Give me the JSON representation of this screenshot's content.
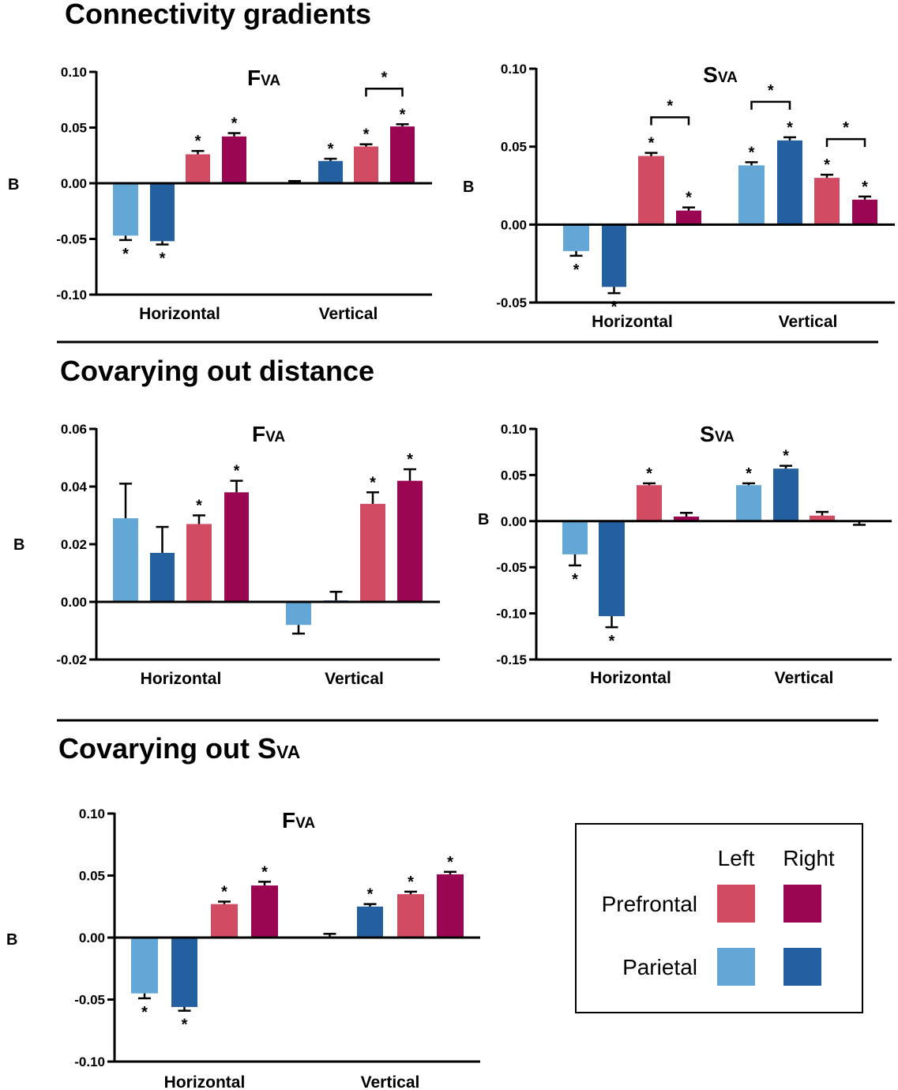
{
  "sections": [
    {
      "title": "Connectivity gradients",
      "sub": ""
    },
    {
      "title": "Covarying out distance",
      "sub": ""
    },
    {
      "title": "Covarying out S",
      "sub": "VA"
    }
  ],
  "colors": {
    "parietal_left": "#62a7d6",
    "parietal_right": "#245fa0",
    "prefrontal_left": "#d14b63",
    "prefrontal_right": "#9a0652"
  },
  "legend": {
    "col_left": "Left",
    "col_right": "Right",
    "row_prefrontal": "Prefrontal",
    "row_parietal": "Parietal"
  },
  "chart_data": [
    {
      "type": "bar",
      "title_main": "F",
      "title_sub": "VA",
      "ylabel": "B",
      "ylim": [
        -0.1,
        0.1
      ],
      "ticks": [
        "0.10",
        "0.05",
        "0.00",
        "-0.05",
        "-0.10"
      ],
      "tick_values": [
        0.1,
        0.05,
        0.0,
        -0.05,
        -0.1
      ],
      "categories": [
        "Horizontal",
        "Vertical"
      ],
      "series": [
        {
          "name": "Parietal Left",
          "color_key": "parietal_left",
          "values": [
            -0.047,
            0.0
          ],
          "errors": [
            0.004,
            0.002
          ],
          "sig": [
            true,
            false
          ]
        },
        {
          "name": "Parietal Right",
          "color_key": "parietal_right",
          "values": [
            -0.052,
            0.02
          ],
          "errors": [
            0.003,
            0.002
          ],
          "sig": [
            true,
            true
          ]
        },
        {
          "name": "Prefrontal Left",
          "color_key": "prefrontal_left",
          "values": [
            0.026,
            0.033
          ],
          "errors": [
            0.003,
            0.002
          ],
          "sig": [
            true,
            true
          ]
        },
        {
          "name": "Prefrontal Right",
          "color_key": "prefrontal_right",
          "values": [
            0.042,
            0.051
          ],
          "errors": [
            0.003,
            0.002
          ],
          "sig": [
            true,
            true
          ]
        }
      ],
      "brackets": [
        {
          "category": 1,
          "from": 2,
          "to": 3,
          "label": "*"
        }
      ]
    },
    {
      "type": "bar",
      "title_main": "S",
      "title_sub": "VA",
      "ylabel": "B",
      "ylim": [
        -0.05,
        0.1
      ],
      "ticks": [
        "0.10",
        "0.05",
        "0.00",
        "-0.05"
      ],
      "tick_values": [
        0.1,
        0.05,
        0.0,
        -0.05
      ],
      "categories": [
        "Horizontal",
        "Vertical"
      ],
      "series": [
        {
          "name": "Parietal Left",
          "color_key": "parietal_left",
          "values": [
            -0.017,
            0.038
          ],
          "errors": [
            0.003,
            0.002
          ],
          "sig": [
            true,
            true
          ]
        },
        {
          "name": "Parietal Right",
          "color_key": "parietal_right",
          "values": [
            -0.04,
            0.054
          ],
          "errors": [
            0.004,
            0.002
          ],
          "sig": [
            true,
            true
          ]
        },
        {
          "name": "Prefrontal Left",
          "color_key": "prefrontal_left",
          "values": [
            0.044,
            0.03
          ],
          "errors": [
            0.002,
            0.002
          ],
          "sig": [
            true,
            true
          ]
        },
        {
          "name": "Prefrontal Right",
          "color_key": "prefrontal_right",
          "values": [
            0.009,
            0.016
          ],
          "errors": [
            0.002,
            0.002
          ],
          "sig": [
            true,
            true
          ]
        }
      ],
      "brackets": [
        {
          "category": 0,
          "from": 2,
          "to": 3,
          "label": "*"
        },
        {
          "category": 1,
          "from": 0,
          "to": 1,
          "label": "*"
        },
        {
          "category": 1,
          "from": 2,
          "to": 3,
          "label": "*"
        }
      ]
    },
    {
      "type": "bar",
      "title_main": "F",
      "title_sub": "VA",
      "ylabel": "B",
      "ylim": [
        -0.02,
        0.06
      ],
      "ticks": [
        "0.06",
        "0.04",
        "0.02",
        "0.00",
        "-0.02"
      ],
      "tick_values": [
        0.06,
        0.04,
        0.02,
        0.0,
        -0.02
      ],
      "categories": [
        "Horizontal",
        "Vertical"
      ],
      "series": [
        {
          "name": "Parietal Left",
          "color_key": "parietal_left",
          "values": [
            0.029,
            -0.008
          ],
          "errors": [
            0.012,
            0.003
          ],
          "sig": [
            false,
            false
          ]
        },
        {
          "name": "Parietal Right",
          "color_key": "parietal_right",
          "values": [
            0.017,
            0.0005
          ],
          "errors": [
            0.009,
            0.003
          ],
          "sig": [
            false,
            false
          ]
        },
        {
          "name": "Prefrontal Left",
          "color_key": "prefrontal_left",
          "values": [
            0.027,
            0.034
          ],
          "errors": [
            0.003,
            0.004
          ],
          "sig": [
            true,
            true
          ]
        },
        {
          "name": "Prefrontal Right",
          "color_key": "prefrontal_right",
          "values": [
            0.038,
            0.042
          ],
          "errors": [
            0.004,
            0.004
          ],
          "sig": [
            true,
            true
          ]
        }
      ],
      "brackets": []
    },
    {
      "type": "bar",
      "title_main": "S",
      "title_sub": "VA",
      "ylabel": "B",
      "ylim": [
        -0.15,
        0.1
      ],
      "ticks": [
        "0.10",
        "0.05",
        "0.00",
        "-0.05",
        "-0.10",
        "-0.15"
      ],
      "tick_values": [
        0.1,
        0.05,
        0.0,
        -0.05,
        -0.1,
        -0.15
      ],
      "categories": [
        "Horizontal",
        "Vertical"
      ],
      "series": [
        {
          "name": "Parietal Left",
          "color_key": "parietal_left",
          "values": [
            -0.036,
            0.039
          ],
          "errors": [
            0.012,
            0.002
          ],
          "sig": [
            true,
            true
          ]
        },
        {
          "name": "Parietal Right",
          "color_key": "parietal_right",
          "values": [
            -0.103,
            0.057
          ],
          "errors": [
            0.012,
            0.003
          ],
          "sig": [
            true,
            true
          ]
        },
        {
          "name": "Prefrontal Left",
          "color_key": "prefrontal_left",
          "values": [
            0.039,
            0.006
          ],
          "errors": [
            0.002,
            0.004
          ],
          "sig": [
            true,
            false
          ]
        },
        {
          "name": "Prefrontal Right",
          "color_key": "prefrontal_right",
          "values": [
            0.005,
            -0.001
          ],
          "errors": [
            0.004,
            0.003
          ],
          "sig": [
            false,
            false
          ]
        }
      ],
      "brackets": []
    },
    {
      "type": "bar",
      "title_main": "F",
      "title_sub": "VA",
      "ylabel": "B",
      "ylim": [
        -0.1,
        0.1
      ],
      "ticks": [
        "0.10",
        "0.05",
        "0.00",
        "-0.05",
        "-0.10"
      ],
      "tick_values": [
        0.1,
        0.05,
        0.0,
        -0.05,
        -0.1
      ],
      "categories": [
        "Horizontal",
        "Vertical"
      ],
      "series": [
        {
          "name": "Parietal Left",
          "color_key": "parietal_left",
          "values": [
            -0.045,
            0.0
          ],
          "errors": [
            0.004,
            0.003
          ],
          "sig": [
            true,
            false
          ]
        },
        {
          "name": "Parietal Right",
          "color_key": "parietal_right",
          "values": [
            -0.056,
            0.025
          ],
          "errors": [
            0.003,
            0.002
          ],
          "sig": [
            true,
            true
          ]
        },
        {
          "name": "Prefrontal Left",
          "color_key": "prefrontal_left",
          "values": [
            0.027,
            0.035
          ],
          "errors": [
            0.002,
            0.002
          ],
          "sig": [
            true,
            true
          ]
        },
        {
          "name": "Prefrontal Right",
          "color_key": "prefrontal_right",
          "values": [
            0.042,
            0.051
          ],
          "errors": [
            0.003,
            0.002
          ],
          "sig": [
            true,
            true
          ]
        }
      ],
      "brackets": []
    }
  ]
}
